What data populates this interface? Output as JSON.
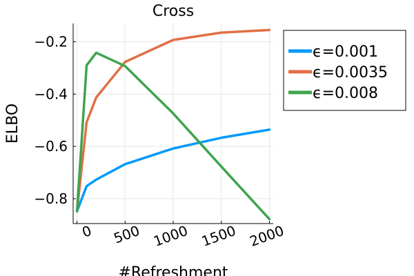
{
  "chart_data": {
    "type": "line",
    "title": "Cross",
    "xlabel": "#Refreshment",
    "ylabel": "ELBO",
    "xlim": [
      -40,
      2040
    ],
    "ylim": [
      -0.895,
      -0.13
    ],
    "xticks": [
      0,
      500,
      1000,
      1500,
      2000
    ],
    "xtick_labels": [
      "0",
      "500",
      "1000",
      "1500",
      "2000"
    ],
    "yticks": [
      -0.8,
      -0.6,
      -0.4,
      -0.2
    ],
    "ytick_labels": [
      "−0.8",
      "−0.6",
      "−0.4",
      "−0.2"
    ],
    "grid": true,
    "legend_position": "outside-right",
    "series": [
      {
        "name": "ϵ=0.001",
        "color": "#009AFA",
        "x": [
          0,
          100,
          200,
          500,
          1000,
          1500,
          2000
        ],
        "y": [
          -0.848,
          -0.752,
          -0.727,
          -0.668,
          -0.608,
          -0.567,
          -0.536
        ]
      },
      {
        "name": "ϵ=0.0035",
        "color": "#E26F46",
        "x": [
          0,
          100,
          200,
          500,
          1000,
          1500,
          2000
        ],
        "y": [
          -0.848,
          -0.508,
          -0.413,
          -0.277,
          -0.193,
          -0.165,
          -0.155
        ]
      },
      {
        "name": "ϵ=0.008",
        "color": "#3EA44E",
        "x": [
          0,
          100,
          200,
          500,
          1000,
          1500,
          2000
        ],
        "y": [
          -0.848,
          -0.29,
          -0.242,
          -0.293,
          -0.474,
          -0.677,
          -0.878
        ]
      }
    ]
  }
}
